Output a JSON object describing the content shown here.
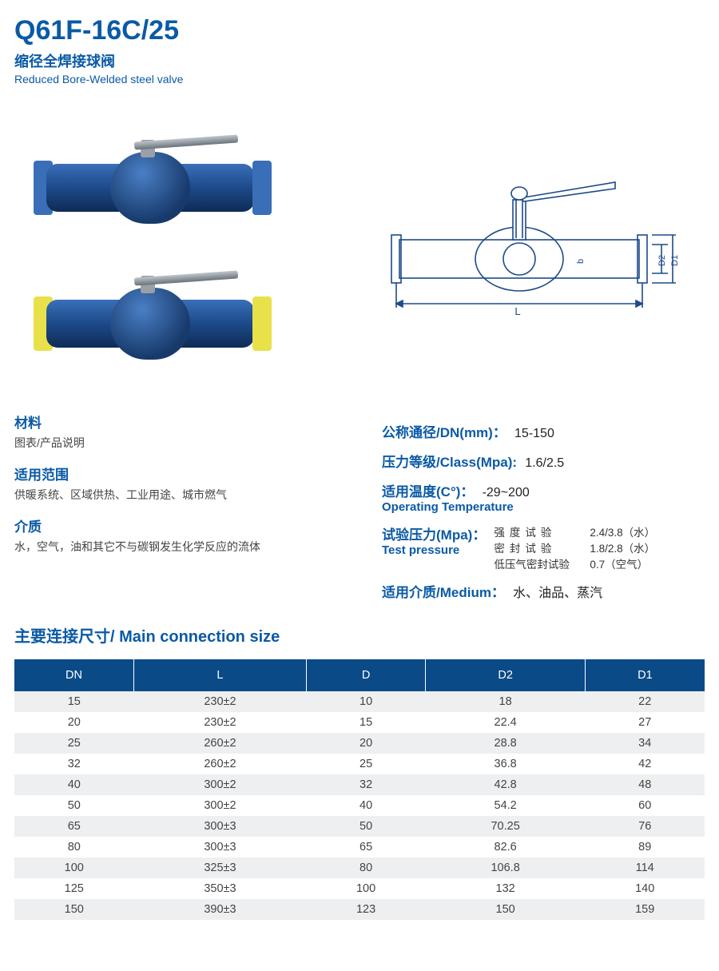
{
  "header": {
    "title": "Q61F-16C/25",
    "subtitle_cn": "缩径全焊接球阀",
    "subtitle_en": "Reduced Bore-Welded steel valve"
  },
  "photos": {
    "valve1_end_color": "#3a6fb8",
    "valve2_end_color": "#e8e14a",
    "body_gradient_top": "#3a6fb8",
    "body_gradient_bottom": "#0e2c55"
  },
  "diagram": {
    "stroke": "#1d4a8a",
    "labels": {
      "L": "L",
      "D2": "D2",
      "D1": "D1",
      "b": "b"
    }
  },
  "left_specs": {
    "material_label": "材料",
    "material_text": "图表/产品说明",
    "scope_label": "适用范围",
    "scope_text": "供暖系统、区域供热、工业用途、城市燃气",
    "medium_label": "介质",
    "medium_text": "水，空气，油和其它不与碳钢发生化学反应的流体"
  },
  "right_specs": {
    "dn_label": "公称通径/DN(mm)：",
    "dn_value": "15-150",
    "class_label": "压力等级/Class(Mpa):",
    "class_value": "1.6/2.5",
    "temp_label_cn": "适用温度(C°)：",
    "temp_value": "-29~200",
    "temp_label_en": "Operating Temperature",
    "test_label_cn": "试验压力(Mpa)：",
    "test_label_en": "Test pressure",
    "test_rows": [
      {
        "label": "强度试验",
        "spaced": true,
        "value": "2.4/3.8（水）"
      },
      {
        "label": "密封试验",
        "spaced": true,
        "value": "1.8/2.8（水）"
      },
      {
        "label": "低压气密封试验",
        "spaced": false,
        "value": "0.7（空气）"
      }
    ],
    "medium2_label": "适用介质/Medium：",
    "medium2_value": "水、油品、蒸汽"
  },
  "table": {
    "section_title": "主要连接尺寸/ Main connection size",
    "header_bg": "#0a4a87",
    "row_even_bg": "#edeff1",
    "row_odd_bg": "#ffffff",
    "columns": [
      "DN",
      "L",
      "D",
      "D2",
      "D1"
    ],
    "rows": [
      [
        "15",
        "230±2",
        "10",
        "18",
        "22"
      ],
      [
        "20",
        "230±2",
        "15",
        "22.4",
        "27"
      ],
      [
        "25",
        "260±2",
        "20",
        "28.8",
        "34"
      ],
      [
        "32",
        "260±2",
        "25",
        "36.8",
        "42"
      ],
      [
        "40",
        "300±2",
        "32",
        "42.8",
        "48"
      ],
      [
        "50",
        "300±2",
        "40",
        "54.2",
        "60"
      ],
      [
        "65",
        "300±3",
        "50",
        "70.25",
        "76"
      ],
      [
        "80",
        "300±3",
        "65",
        "82.6",
        "89"
      ],
      [
        "100",
        "325±3",
        "80",
        "106.8",
        "114"
      ],
      [
        "125",
        "350±3",
        "100",
        "132",
        "140"
      ],
      [
        "150",
        "390±3",
        "123",
        "150",
        "159"
      ]
    ]
  }
}
